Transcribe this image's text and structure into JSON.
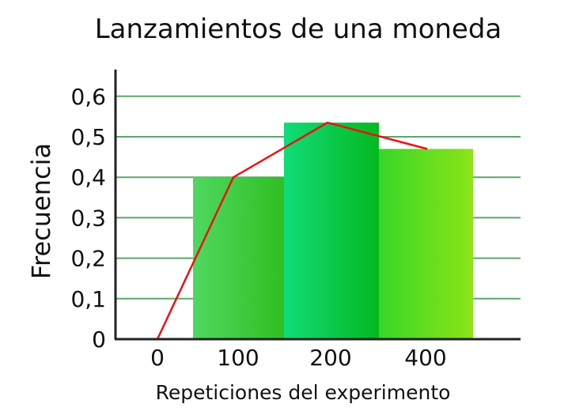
{
  "chart_data": {
    "type": "bar",
    "title": "Lanzamientos de una moneda",
    "xlabel": "Repeticiones del experimento",
    "ylabel": "Frecuencia",
    "x_tick_labels": [
      "0",
      "100",
      "200",
      "400"
    ],
    "y_tick_labels": [
      "0",
      "0,1",
      "0,2",
      "0,3",
      "0,4",
      "0,5",
      "0,6"
    ],
    "y_ticks": [
      0,
      0.1,
      0.2,
      0.3,
      0.4,
      0.5,
      0.6
    ],
    "ylim": [
      0,
      0.65
    ],
    "grid": true,
    "bars": [
      {
        "category": "100",
        "value": 0.4
      },
      {
        "category": "200",
        "value": 0.535
      },
      {
        "category": "400",
        "value": 0.47
      }
    ],
    "line": {
      "x": [
        "0",
        "100",
        "200",
        "400"
      ],
      "values": [
        0,
        0.4,
        0.535,
        0.47
      ]
    },
    "colors": {
      "grid": "#5aa86a",
      "axis": "#222222",
      "line": "#ee1111",
      "bar_1": [
        "#4fd860",
        "#2fbf22"
      ],
      "bar_2": [
        "#10dc78",
        "#05b820"
      ],
      "bar_3": [
        "#38d628",
        "#8ce418"
      ]
    }
  }
}
